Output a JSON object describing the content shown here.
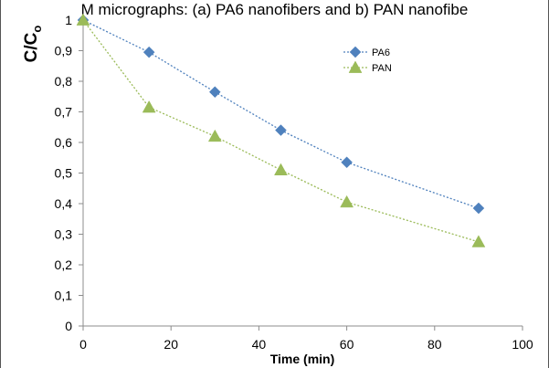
{
  "caption": "M micrographs: (a) PA6 nanofibers and b) PAN nanofibe",
  "chart_data": {
    "type": "line",
    "title": "",
    "xlabel": "Time (min)",
    "ylabel_main": "C/C",
    "ylabel_sub": "o",
    "xlim": [
      0,
      100
    ],
    "ylim": [
      0,
      1
    ],
    "xticks": [
      "0",
      "20",
      "40",
      "60",
      "80",
      "100"
    ],
    "yticks": [
      "0",
      "0,1",
      "0,2",
      "0,3",
      "0,4",
      "0,5",
      "0,6",
      "0,7",
      "0,8",
      "0,9",
      "1"
    ],
    "grid": false,
    "legend_position": "top-right",
    "x": [
      0,
      15,
      30,
      45,
      60,
      90
    ],
    "series": [
      {
        "name": "PA6",
        "marker": "diamond",
        "color": "#4f81bd",
        "values": [
          1.0,
          0.895,
          0.765,
          0.64,
          0.535,
          0.385
        ]
      },
      {
        "name": "PAN",
        "marker": "triangle",
        "color": "#9bbb59",
        "values": [
          1.0,
          0.715,
          0.62,
          0.51,
          0.405,
          0.275
        ]
      }
    ]
  }
}
